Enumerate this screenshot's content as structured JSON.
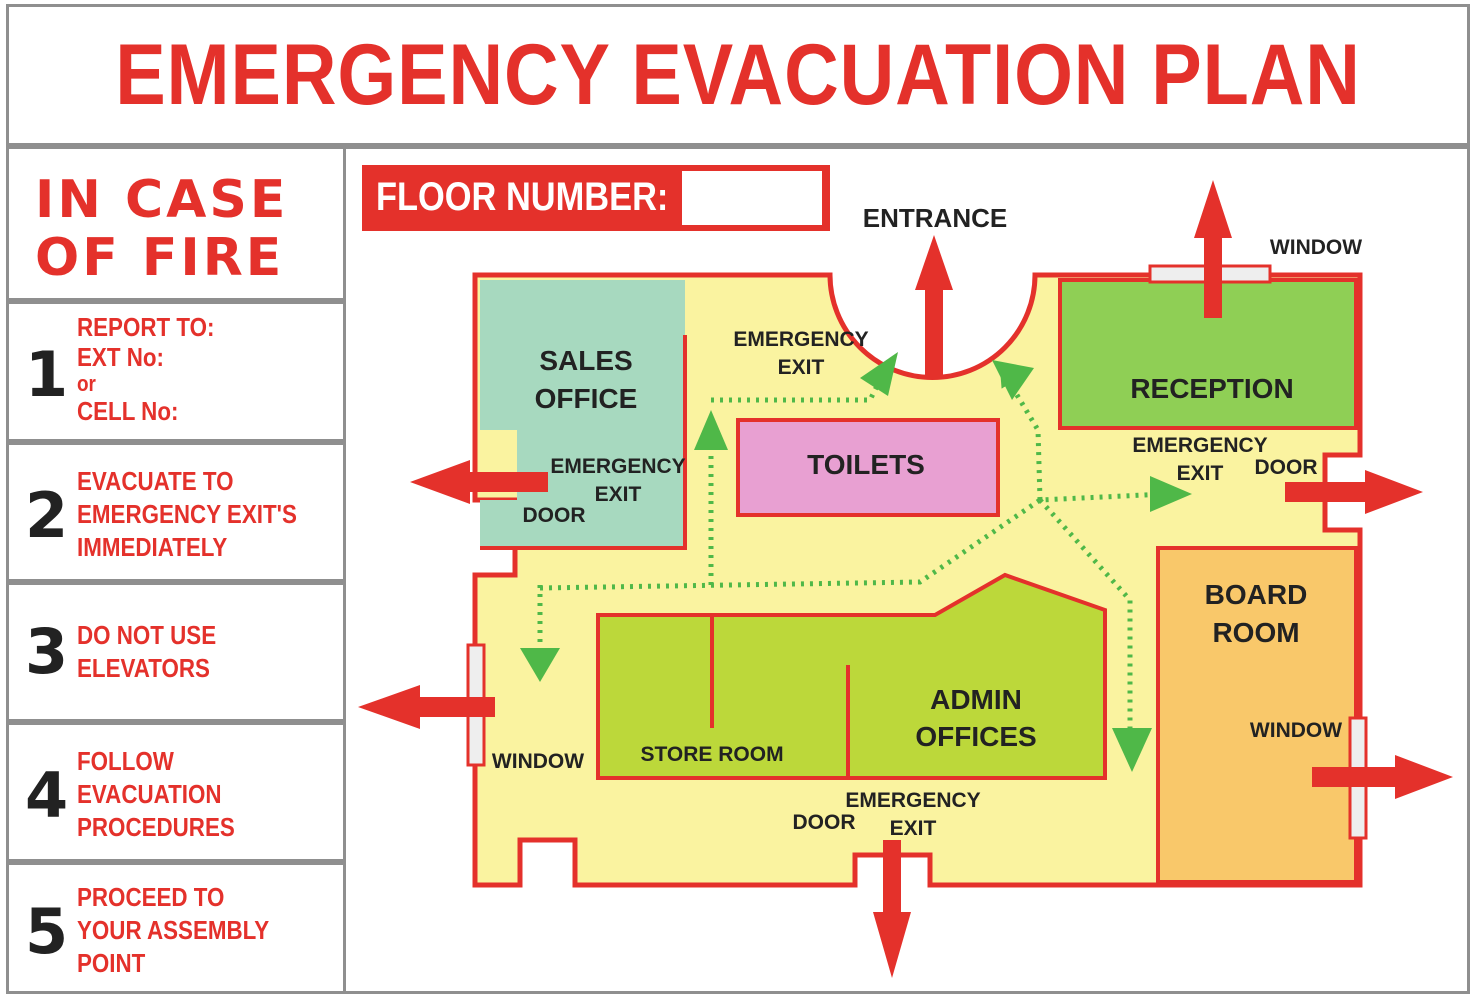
{
  "title": "EMERGENCY EVACUATION PLAN",
  "sidebar": {
    "heading_line1": "IN CASE",
    "heading_line2": "OF FIRE",
    "steps": [
      {
        "number": "1",
        "lines": [
          "REPORT TO:",
          "EXT No:",
          "or",
          "CELL No:"
        ]
      },
      {
        "number": "2",
        "lines": [
          "EVACUATE TO",
          "EMERGENCY EXIT'S",
          "IMMEDIATELY"
        ]
      },
      {
        "number": "3",
        "lines": [
          "DO NOT USE",
          "ELEVATORS"
        ]
      },
      {
        "number": "4",
        "lines": [
          "FOLLOW",
          "EVACUATION",
          "PROCEDURES"
        ]
      },
      {
        "number": "5",
        "lines": [
          "PROCEED TO",
          "YOUR ASSEMBLY",
          "POINT"
        ]
      }
    ]
  },
  "floor": {
    "label": "FLOOR NUMBER:",
    "value": ""
  },
  "plan": {
    "rooms": {
      "sales_office": [
        "SALES",
        "OFFICE"
      ],
      "toilets": "TOILETS",
      "reception": "RECEPTION",
      "board_room": [
        "BOARD",
        "ROOM"
      ],
      "admin_offices": [
        "ADMIN",
        "OFFICES"
      ],
      "store_room": "STORE ROOM"
    },
    "labels": {
      "entrance": "ENTRANCE",
      "window": "WINDOW",
      "door": "DOOR",
      "emergency": "EMERGENCY",
      "exit": "EXIT"
    }
  },
  "colors": {
    "red": "#e4312b",
    "floor_yellow": "#faf3a0",
    "sales_green": "#a7d9bf",
    "reception_green": "#8fcf55",
    "admin_green": "#bcd83a",
    "toilets_pink": "#e8a0d2",
    "board_orange": "#f9c86a",
    "route_green": "#4fb848"
  }
}
